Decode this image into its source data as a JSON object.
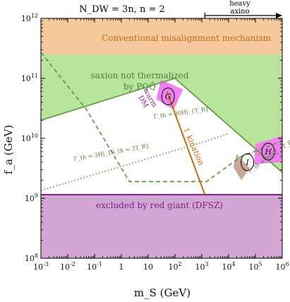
{
  "chart_data": {
    "type": "area",
    "title": "N_DW = 3n, n = 2",
    "xlabel": "m_S (GeV)",
    "ylabel": "f_a (GeV)",
    "xscale": "log",
    "yscale": "log",
    "xlim": [
      0.001,
      1000000
    ],
    "ylim": [
      100000000,
      1000000000000
    ],
    "grid": false,
    "x_ticks": [
      0.001,
      0.01,
      0.1,
      1,
      10,
      100,
      1000,
      10000,
      100000,
      1000000
    ],
    "x_tick_labels": [
      "10^-3",
      "10^-2",
      "10^-1",
      "1",
      "10",
      "10^2",
      "10^3",
      "10^4",
      "10^5",
      "10^6"
    ],
    "y_ticks": [
      100000000,
      1000000000,
      10000000000,
      100000000000,
      1000000000000
    ],
    "y_tick_labels": [
      "10^8",
      "10^9",
      "10^10",
      "10^11",
      "10^12"
    ],
    "heavy_axino": {
      "label_line1": "heavy",
      "label_line2": "axino",
      "from_x": 1300,
      "to_x": 1000000
    },
    "regions": [
      {
        "name": "misalignment",
        "label": "Conventional misalignment mechanism",
        "color": "#f5c99b",
        "text_color": "#c06a1a",
        "y_range": [
          250000000000,
          1000000000000
        ]
      },
      {
        "name": "not-thermalized",
        "label_line1": "saxion not thermalized",
        "label_line2": "by PQQ̄",
        "color": "#b9e49c",
        "text_color": "#4f7f38"
      },
      {
        "name": "red-giant",
        "label": "excluded by red giant (DFSZ)",
        "color": "#d4a6d6",
        "text_color": "#7a1f7c",
        "y_range": [
          100000000,
          1150000000
        ]
      },
      {
        "name": "warm-dm",
        "label_line1": "warm",
        "label_line2": "DM",
        "color": "#f07ff0"
      }
    ],
    "curves": [
      {
        "name": "green-solid",
        "style": "solid",
        "color": "#6a9a4c",
        "points": [
          [
            0.001,
            20000000000
          ],
          [
            100,
            100000000000
          ],
          [
            1000000,
            2700000000
          ]
        ]
      },
      {
        "name": "green-dashed",
        "label": "Γ_th = 3H|_{S_th = 3T_R}",
        "style": "dashed",
        "color": "#6a9a4c",
        "points": [
          [
            0.001,
            270000000000
          ],
          [
            0.05,
            30000000000
          ],
          [
            2,
            1900000000
          ],
          [
            1500,
            1900000000
          ],
          [
            30000,
            5000000000
          ],
          [
            1000000,
            9000000000
          ]
        ]
      },
      {
        "name": "green-dotted",
        "style": "dotted",
        "color": "#6a9a4c",
        "points": [
          [
            0.001,
            1350000000
          ],
          [
            1000,
            8500000000
          ],
          [
            10000,
            12000000000
          ]
        ]
      },
      {
        "name": "kination-line",
        "label": "↑ kination",
        "style": "solid",
        "color": "#c66a12",
        "points": [
          [
            50,
            60000000000
          ],
          [
            1300,
            1150000000
          ]
        ]
      },
      {
        "name": "gamma-th-label-upper",
        "label": "Γ_th = 30H|_{T_R}"
      },
      {
        "name": "gamma-th-label-lower",
        "label": "Γ_th = 30H|_{T_R}"
      }
    ],
    "benchmarks": [
      {
        "label": "G",
        "x": 55,
        "y": 50000000000
      },
      {
        "label": "H",
        "x": 300000,
        "y": 6000000000
      },
      {
        "label": "I",
        "x": 50000,
        "y": 4000000000
      }
    ],
    "colors": {
      "misalignment_fill": "#f5c99b",
      "not_thermalized_fill": "#b9e49c",
      "red_giant_fill": "#d4a6d6",
      "red_giant_line": "#7a1f7c",
      "warm_dm_fill": "#f07ff0",
      "gray_region_fill": "#c9a89a",
      "green_line": "#6a9a4c",
      "kination_line": "#c66a12"
    }
  }
}
